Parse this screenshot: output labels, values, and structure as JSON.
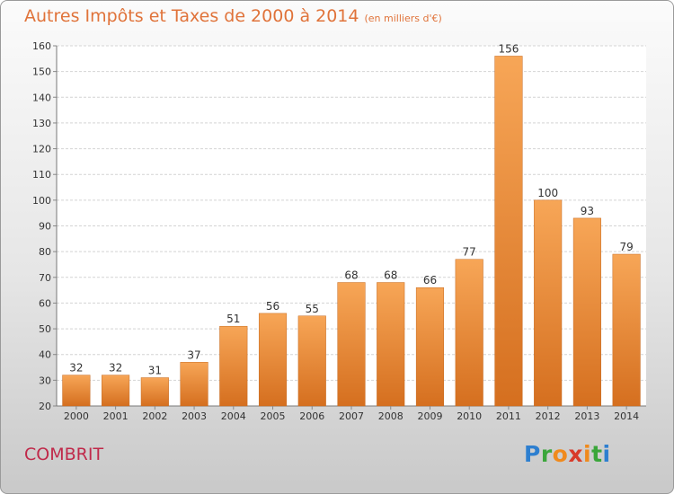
{
  "title": "Autres Impôts et Taxes de 2000 à 2014",
  "unit": "(en milliers d'€)",
  "commune": "COMBRIT",
  "logo": {
    "text": "Proxiti",
    "letter_colors": [
      "#2d7fd0",
      "#3aa63a",
      "#f08a1c",
      "#d83a2a",
      "#f08a1c",
      "#3aa63a",
      "#2d7fd0"
    ]
  },
  "chart_data": {
    "type": "bar",
    "categories": [
      "2000",
      "2001",
      "2002",
      "2003",
      "2004",
      "2005",
      "2006",
      "2007",
      "2008",
      "2009",
      "2010",
      "2011",
      "2012",
      "2013",
      "2014"
    ],
    "values": [
      32,
      32,
      31,
      37,
      51,
      56,
      55,
      68,
      68,
      66,
      77,
      156,
      100,
      93,
      79
    ],
    "ylim": [
      20,
      160
    ],
    "yticks": [
      20,
      30,
      40,
      50,
      60,
      70,
      80,
      90,
      100,
      110,
      120,
      130,
      140,
      150,
      160
    ],
    "grid": true,
    "bar_color_top": "#f7a657",
    "bar_color_bottom": "#d56f1f"
  }
}
